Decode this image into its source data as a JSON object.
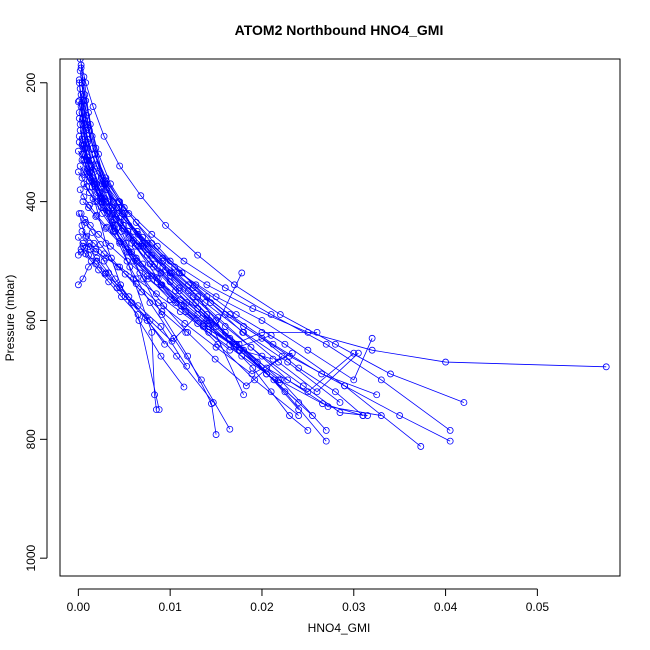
{
  "chart_data": {
    "type": "line",
    "title": "ATOM2 Northbound HNO4_GMI",
    "xlabel": "HNO4_GMI",
    "ylabel": "Pressure (mbar)",
    "xlim": [
      -0.002,
      0.059
    ],
    "ylim": [
      1030,
      160
    ],
    "y_reversed": true,
    "x_ticks": [
      0.0,
      0.01,
      0.02,
      0.03,
      0.04,
      0.05
    ],
    "x_tick_labels": [
      "0.00",
      "0.01",
      "0.02",
      "0.03",
      "0.04",
      "0.05"
    ],
    "y_ticks": [
      200,
      400,
      600,
      800,
      1000
    ],
    "y_tick_labels": [
      "200",
      "400",
      "600",
      "800",
      "1000"
    ],
    "series_color": "#0000ff",
    "marker": "open-circle",
    "grid": false,
    "series": [
      {
        "x": [
          0.0,
          0.0005,
          0.001,
          0.002,
          0.003,
          0.005,
          0.007,
          0.01,
          0.013,
          0.015,
          0.0165,
          0.019,
          0.021,
          0.023,
          0.025
        ],
        "y": [
          232,
          260,
          300,
          340,
          380,
          420,
          470,
          520,
          560,
          600,
          640,
          680,
          720,
          760,
          785
        ]
      },
      {
        "x": [
          0.0002,
          0.0006,
          0.0012,
          0.0018,
          0.003,
          0.0045,
          0.006,
          0.008,
          0.012,
          0.016,
          0.02,
          0.024,
          0.028,
          0.031
        ],
        "y": [
          180,
          230,
          280,
          320,
          360,
          400,
          450,
          490,
          540,
          590,
          630,
          680,
          720,
          760
        ]
      },
      {
        "x": [
          0.0001,
          0.0004,
          0.0008,
          0.0015,
          0.0025,
          0.004,
          0.006,
          0.009,
          0.013,
          0.0175,
          0.022,
          0.027
        ],
        "y": [
          200,
          250,
          310,
          360,
          410,
          450,
          500,
          540,
          580,
          640,
          700,
          785
        ]
      },
      {
        "x": [
          0.0003,
          0.0007,
          0.0013,
          0.0022,
          0.0035,
          0.0055,
          0.008,
          0.011,
          0.015,
          0.02,
          0.025,
          0.03,
          0.032
        ],
        "y": [
          170,
          220,
          270,
          320,
          370,
          420,
          470,
          520,
          560,
          600,
          650,
          700,
          630
        ]
      },
      {
        "x": [
          0.0,
          0.0006,
          0.0012,
          0.002,
          0.0032,
          0.005,
          0.0075,
          0.0105,
          0.014,
          0.018,
          0.023,
          0.029,
          0.035,
          0.0405
        ],
        "y": [
          315,
          330,
          350,
          370,
          400,
          430,
          470,
          510,
          560,
          610,
          660,
          710,
          760,
          803
        ]
      },
      {
        "x": [
          0.0002,
          0.0008,
          0.0016,
          0.0028,
          0.0045,
          0.0068,
          0.0095,
          0.013,
          0.017,
          0.022,
          0.028,
          0.034,
          0.042
        ],
        "y": [
          160,
          200,
          240,
          290,
          340,
          390,
          440,
          490,
          540,
          590,
          640,
          690,
          738
        ]
      },
      {
        "x": [
          0.0005,
          0.001,
          0.0018,
          0.003,
          0.005,
          0.008,
          0.0115,
          0.016,
          0.021,
          0.027,
          0.033,
          0.0405
        ],
        "y": [
          230,
          275,
          320,
          365,
          410,
          455,
          500,
          545,
          590,
          640,
          700,
          785
        ]
      },
      {
        "x": [
          0.0001,
          0.0006,
          0.0014,
          0.0026,
          0.0042,
          0.0064,
          0.0092,
          0.0128,
          0.0172,
          0.0225,
          0.029,
          0.0373
        ],
        "y": [
          250,
          290,
          330,
          370,
          410,
          450,
          495,
          540,
          590,
          640,
          710,
          812
        ]
      },
      {
        "x": [
          0.0004,
          0.0009,
          0.0017,
          0.0029,
          0.0047,
          0.007,
          0.01,
          0.014,
          0.019,
          0.025,
          0.032,
          0.04,
          0.0575
        ],
        "y": [
          330,
          350,
          370,
          395,
          425,
          460,
          500,
          540,
          580,
          620,
          650,
          670,
          678
        ]
      },
      {
        "x": [
          0.0,
          0.0005,
          0.0011,
          0.002,
          0.0033,
          0.0051,
          0.0075,
          0.0107,
          0.0147
        ],
        "y": [
          540,
          530,
          510,
          495,
          520,
          560,
          600,
          660,
          738
        ]
      },
      {
        "x": [
          0.0003,
          0.0008,
          0.0015,
          0.0025,
          0.004,
          0.006,
          0.008,
          0.0083,
          0.0085
        ],
        "y": [
          175,
          230,
          290,
          360,
          440,
          530,
          620,
          725,
          750
        ]
      },
      {
        "x": [
          0.0001,
          0.0005,
          0.001,
          0.0018,
          0.003,
          0.0046,
          0.0066,
          0.009,
          0.0115
        ],
        "y": [
          195,
          260,
          330,
          400,
          470,
          540,
          600,
          660,
          712
        ]
      },
      {
        "x": [
          0.0006,
          0.0011,
          0.0019,
          0.0031,
          0.0047,
          0.0067,
          0.0091,
          0.0119,
          0.0145,
          0.015
        ],
        "y": [
          190,
          250,
          310,
          380,
          450,
          520,
          590,
          660,
          740,
          792
        ]
      },
      {
        "x": [
          0.0002,
          0.0007,
          0.0014,
          0.0024,
          0.0038,
          0.0056,
          0.0078,
          0.0104,
          0.0134,
          0.0165
        ],
        "y": [
          210,
          270,
          330,
          390,
          450,
          510,
          570,
          630,
          700,
          783
        ]
      },
      {
        "x": [
          0.0004,
          0.0009,
          0.0016,
          0.0027,
          0.0042,
          0.0062,
          0.0087,
          0.0117,
          0.0152,
          0.0192,
          0.024
        ],
        "y": [
          200,
          255,
          310,
          365,
          420,
          475,
          530,
          585,
          640,
          700,
          760
        ]
      },
      {
        "x": [
          0.0001,
          0.0006,
          0.0013,
          0.0023,
          0.0037,
          0.0055,
          0.0078,
          0.0106,
          0.014,
          0.018,
          0.0225,
          0.027
        ],
        "y": [
          290,
          320,
          350,
          385,
          420,
          460,
          505,
          550,
          600,
          650,
          720,
          803
        ]
      },
      {
        "x": [
          0.0005,
          0.001,
          0.0017,
          0.0028,
          0.0044,
          0.0065,
          0.0092,
          0.0125,
          0.0165,
          0.0212,
          0.0265,
          0.0325
        ],
        "y": [
          260,
          295,
          330,
          370,
          410,
          455,
          500,
          545,
          590,
          640,
          690,
          725
        ]
      },
      {
        "x": [
          0.0002,
          0.0007,
          0.0015,
          0.0026,
          0.0041,
          0.006,
          0.0083,
          0.011,
          0.014,
          0.0172,
          0.0205
        ],
        "y": [
          340,
          355,
          375,
          400,
          430,
          465,
          505,
          545,
          590,
          640,
          690
        ]
      },
      {
        "x": [
          0.0003,
          0.0009,
          0.0018,
          0.003,
          0.0048,
          0.0072,
          0.0102,
          0.0138,
          0.018,
          0.0228,
          0.0285
        ],
        "y": [
          220,
          270,
          320,
          370,
          420,
          470,
          520,
          570,
          620,
          670,
          738
        ]
      },
      {
        "x": [
          0.0,
          0.0004,
          0.0009,
          0.0016,
          0.0026,
          0.004,
          0.0058,
          0.008,
          0.0106,
          0.0136,
          0.017,
          0.02,
          0.026
        ],
        "y": [
          350,
          360,
          375,
          395,
          420,
          450,
          485,
          525,
          570,
          610,
          640,
          620,
          620
        ]
      },
      {
        "x": [
          0.0001,
          0.0006,
          0.0013,
          0.0024,
          0.0039,
          0.0058,
          0.0082,
          0.011,
          0.0143,
          0.018
        ],
        "y": [
          300,
          330,
          360,
          395,
          430,
          470,
          510,
          550,
          600,
          725
        ]
      },
      {
        "x": [
          0.0004,
          0.001,
          0.0018,
          0.003,
          0.0046,
          0.0066,
          0.009,
          0.0118,
          0.015,
          0.0178
        ],
        "y": [
          320,
          345,
          370,
          400,
          435,
          475,
          520,
          570,
          610,
          520
        ]
      },
      {
        "x": [
          0.0006,
          0.0012,
          0.002,
          0.0032,
          0.0048,
          0.0068,
          0.0092,
          0.012,
          0.0152,
          0.0188,
          0.0228,
          0.0272,
          0.033
        ],
        "y": [
          370,
          385,
          400,
          420,
          445,
          475,
          510,
          550,
          595,
          645,
          700,
          745,
          760
        ]
      },
      {
        "x": [
          0.0003,
          0.0008,
          0.0015,
          0.0025,
          0.0038,
          0.0055,
          0.0076,
          0.01,
          0.0128,
          0.016,
          0.0195,
          0.024
        ],
        "y": [
          240,
          280,
          320,
          360,
          400,
          440,
          480,
          525,
          570,
          620,
          670,
          750
        ]
      },
      {
        "x": [
          0.0002,
          0.0007,
          0.0014,
          0.0024,
          0.0037,
          0.0054,
          0.0075,
          0.01,
          0.013,
          0.0165,
          0.0205,
          0.025,
          0.03
        ],
        "y": [
          280,
          310,
          340,
          375,
          410,
          450,
          490,
          535,
          580,
          630,
          680,
          720,
          655
        ]
      },
      {
        "x": [
          0.0005,
          0.0011,
          0.0019,
          0.003,
          0.0045,
          0.0064,
          0.0086,
          0.0112,
          0.0142,
          0.0176,
          0.0212
        ],
        "y": [
          400,
          410,
          425,
          445,
          470,
          500,
          535,
          575,
          615,
          650,
          665
        ]
      },
      {
        "x": [
          0.0001,
          0.0004,
          0.0008,
          0.0013,
          0.002,
          0.003,
          0.0045,
          0.0065,
          0.009,
          0.0118
        ],
        "y": [
          420,
          440,
          460,
          480,
          500,
          520,
          545,
          575,
          610,
          677
        ]
      },
      {
        "x": [
          0.0007,
          0.0013,
          0.0022,
          0.0035,
          0.0053,
          0.0076,
          0.0104,
          0.0137,
          0.0175,
          0.0218,
          0.0266,
          0.031
        ],
        "y": [
          430,
          440,
          455,
          475,
          500,
          530,
          565,
          605,
          650,
          700,
          740,
          760
        ]
      },
      {
        "x": [
          0.0002,
          0.0006,
          0.0011,
          0.0018,
          0.0027,
          0.0039,
          0.0055,
          0.0075,
          0.01,
          0.013,
          0.0165,
          0.021
        ],
        "y": [
          270,
          305,
          340,
          375,
          410,
          445,
          485,
          525,
          565,
          605,
          650,
          625
        ]
      },
      {
        "x": [
          0.0004,
          0.0009,
          0.0017,
          0.0028,
          0.0043,
          0.0063,
          0.0087,
          0.0116,
          0.015,
          0.0189,
          0.0233
        ],
        "y": [
          450,
          458,
          470,
          488,
          510,
          538,
          570,
          605,
          645,
          690,
          655
        ]
      },
      {
        "x": [
          0.0,
          0.0005,
          0.0011,
          0.0019,
          0.0029,
          0.0042,
          0.0058,
          0.0078,
          0.0102,
          0.013
        ],
        "y": [
          460,
          475,
          490,
          505,
          522,
          545,
          570,
          600,
          635,
          590
        ]
      },
      {
        "x": [
          0.0003,
          0.0008,
          0.0014,
          0.0022,
          0.0033,
          0.0047,
          0.0065,
          0.0088
        ],
        "y": [
          480,
          488,
          500,
          515,
          535,
          560,
          590,
          750
        ]
      },
      {
        "x": [
          0.0006,
          0.0012,
          0.0021,
          0.0033,
          0.0049,
          0.007,
          0.0095,
          0.0125,
          0.016,
          0.02,
          0.0245,
          0.0285,
          0.0315
        ],
        "y": [
          350,
          365,
          385,
          410,
          440,
          475,
          515,
          560,
          610,
          660,
          710,
          755,
          760
        ]
      },
      {
        "x": [
          0.0001,
          0.0005,
          0.001,
          0.0017,
          0.0026,
          0.0038,
          0.0053,
          0.0071,
          0.0093,
          0.0119,
          0.0149,
          0.0183,
          0.0222
        ],
        "y": [
          230,
          270,
          310,
          350,
          395,
          440,
          485,
          530,
          575,
          620,
          665,
          710,
          660
        ]
      },
      {
        "x": [
          0.0004,
          0.001,
          0.0018,
          0.0029,
          0.0044,
          0.0063,
          0.0086,
          0.0113,
          0.0144,
          0.0179,
          0.0218,
          0.026,
          0.0305
        ],
        "y": [
          305,
          325,
          345,
          370,
          400,
          435,
          475,
          520,
          570,
          620,
          670,
          720,
          655
        ]
      },
      {
        "x": [
          0.0002,
          0.0006,
          0.0012,
          0.002,
          0.0031,
          0.0045,
          0.0063,
          0.0085,
          0.0111,
          0.0141,
          0.0175,
          0.0213,
          0.0255
        ],
        "y": [
          380,
          392,
          406,
          423,
          443,
          467,
          495,
          528,
          565,
          605,
          650,
          700,
          760
        ]
      },
      {
        "x": [
          0.0,
          0.0003,
          0.0007,
          0.0012,
          0.0019,
          0.0028,
          0.004,
          0.0055,
          0.0073,
          0.0094
        ],
        "y": [
          490,
          485,
          478,
          470,
          480,
          500,
          530,
          560,
          595,
          640
        ]
      },
      {
        "x": [
          0.0005,
          0.0011,
          0.0019,
          0.003,
          0.0045,
          0.0063,
          0.0085,
          0.0111,
          0.0142,
          0.0178,
          0.0219
        ],
        "y": [
          470,
          476,
          484,
          495,
          510,
          530,
          555,
          585,
          620,
          660,
          705
        ]
      },
      {
        "x": [
          0.0003,
          0.0008,
          0.0015,
          0.0024,
          0.0036,
          0.0051,
          0.0069,
          0.0091,
          0.0117
        ],
        "y": [
          420,
          435,
          452,
          472,
          495,
          522,
          552,
          585,
          620
        ]
      },
      {
        "x": [
          0.0001,
          0.0004,
          0.0009,
          0.0016,
          0.0025,
          0.0037,
          0.0052,
          0.007,
          0.0091,
          0.0115,
          0.0142,
          0.0172,
          0.0205,
          0.024
        ],
        "y": [
          260,
          295,
          330,
          365,
          400,
          435,
          470,
          505,
          540,
          575,
          610,
          645,
          690,
          738
        ]
      }
    ]
  }
}
